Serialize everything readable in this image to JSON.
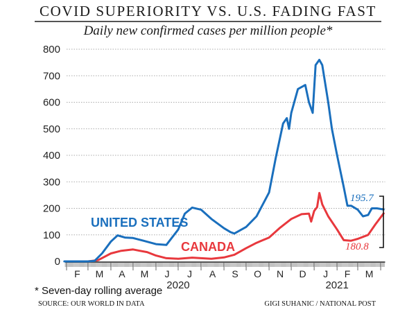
{
  "title": "COVID SUPERIORITY VS. U.S. FADING FAST",
  "subtitle": "Daily new confirmed cases per million people*",
  "footnote": "* Seven-day rolling average",
  "source": "SOURCE: OUR WORLD IN DATA",
  "credit": "GIGI SUHANIC / NATIONAL POST",
  "colors": {
    "us": "#1a6fbd",
    "canada": "#e8383d",
    "grid": "#aaaaaa",
    "axis": "#666666"
  },
  "chart_data": {
    "type": "line",
    "title": "Daily new confirmed cases per million people*",
    "xlabel": "",
    "ylabel": "",
    "ylim": [
      0,
      800
    ],
    "yticks": [
      0,
      100,
      200,
      300,
      400,
      500,
      600,
      700,
      800
    ],
    "xlim": [
      "2020-02-01",
      "2021-04-07"
    ],
    "grid": true,
    "month_ticks": [
      "F",
      "M",
      "A",
      "M",
      "J",
      "J",
      "A",
      "S",
      "O",
      "N",
      "D",
      "J",
      "F",
      "M"
    ],
    "month_dates": [
      "2020-02",
      "2020-03",
      "2020-04",
      "2020-05",
      "2020-06",
      "2020-07",
      "2020-08",
      "2020-09",
      "2020-10",
      "2020-11",
      "2020-12",
      "2021-01",
      "2021-02",
      "2021-03"
    ],
    "year_labels": [
      {
        "label": "2020",
        "center_month": "2020-07"
      },
      {
        "label": "2021",
        "center_month": "2021-02"
      }
    ],
    "series": [
      {
        "name": "UNITED STATES",
        "key": "us",
        "end_label": "195.7",
        "points": [
          [
            "2020-01-29",
            0
          ],
          [
            "2020-03-01",
            0
          ],
          [
            "2020-03-10",
            2
          ],
          [
            "2020-03-20",
            30
          ],
          [
            "2020-04-01",
            75
          ],
          [
            "2020-04-10",
            98
          ],
          [
            "2020-04-20",
            90
          ],
          [
            "2020-05-01",
            88
          ],
          [
            "2020-05-15",
            78
          ],
          [
            "2020-06-01",
            65
          ],
          [
            "2020-06-15",
            62
          ],
          [
            "2020-07-01",
            120
          ],
          [
            "2020-07-10",
            180
          ],
          [
            "2020-07-20",
            203
          ],
          [
            "2020-08-01",
            195
          ],
          [
            "2020-08-15",
            160
          ],
          [
            "2020-09-01",
            125
          ],
          [
            "2020-09-10",
            110
          ],
          [
            "2020-09-15",
            105
          ],
          [
            "2020-10-01",
            130
          ],
          [
            "2020-10-15",
            170
          ],
          [
            "2020-11-01",
            260
          ],
          [
            "2020-11-10",
            390
          ],
          [
            "2020-11-20",
            520
          ],
          [
            "2020-11-25",
            540
          ],
          [
            "2020-11-28",
            500
          ],
          [
            "2020-12-01",
            560
          ],
          [
            "2020-12-10",
            650
          ],
          [
            "2020-12-20",
            665
          ],
          [
            "2020-12-25",
            600
          ],
          [
            "2020-12-30",
            560
          ],
          [
            "2021-01-03",
            740
          ],
          [
            "2021-01-08",
            760
          ],
          [
            "2021-01-12",
            740
          ],
          [
            "2021-01-20",
            600
          ],
          [
            "2021-01-25",
            500
          ],
          [
            "2021-02-01",
            400
          ],
          [
            "2021-02-10",
            280
          ],
          [
            "2021-02-15",
            210
          ],
          [
            "2021-02-20",
            210
          ],
          [
            "2021-03-01",
            195
          ],
          [
            "2021-03-08",
            170
          ],
          [
            "2021-03-15",
            175
          ],
          [
            "2021-03-20",
            200
          ],
          [
            "2021-03-27",
            200
          ],
          [
            "2021-04-05",
            195.7
          ]
        ]
      },
      {
        "name": "CANADA",
        "key": "canada",
        "end_label": "180.8",
        "points": [
          [
            "2020-03-01",
            0
          ],
          [
            "2020-03-15",
            5
          ],
          [
            "2020-04-01",
            30
          ],
          [
            "2020-04-15",
            40
          ],
          [
            "2020-05-01",
            45
          ],
          [
            "2020-05-10",
            40
          ],
          [
            "2020-05-20",
            35
          ],
          [
            "2020-06-01",
            22
          ],
          [
            "2020-06-15",
            12
          ],
          [
            "2020-07-01",
            10
          ],
          [
            "2020-07-20",
            14
          ],
          [
            "2020-08-01",
            12
          ],
          [
            "2020-08-15",
            10
          ],
          [
            "2020-09-01",
            15
          ],
          [
            "2020-09-15",
            25
          ],
          [
            "2020-10-01",
            50
          ],
          [
            "2020-10-15",
            70
          ],
          [
            "2020-11-01",
            90
          ],
          [
            "2020-11-15",
            125
          ],
          [
            "2020-12-01",
            160
          ],
          [
            "2020-12-15",
            178
          ],
          [
            "2020-12-25",
            180
          ],
          [
            "2020-12-28",
            150
          ],
          [
            "2021-01-01",
            190
          ],
          [
            "2021-01-05",
            205
          ],
          [
            "2021-01-08",
            258
          ],
          [
            "2021-01-12",
            215
          ],
          [
            "2021-01-20",
            170
          ],
          [
            "2021-02-01",
            120
          ],
          [
            "2021-02-10",
            80
          ],
          [
            "2021-02-20",
            78
          ],
          [
            "2021-03-01",
            85
          ],
          [
            "2021-03-15",
            100
          ],
          [
            "2021-03-25",
            140
          ],
          [
            "2021-04-05",
            180.8
          ]
        ]
      }
    ]
  }
}
